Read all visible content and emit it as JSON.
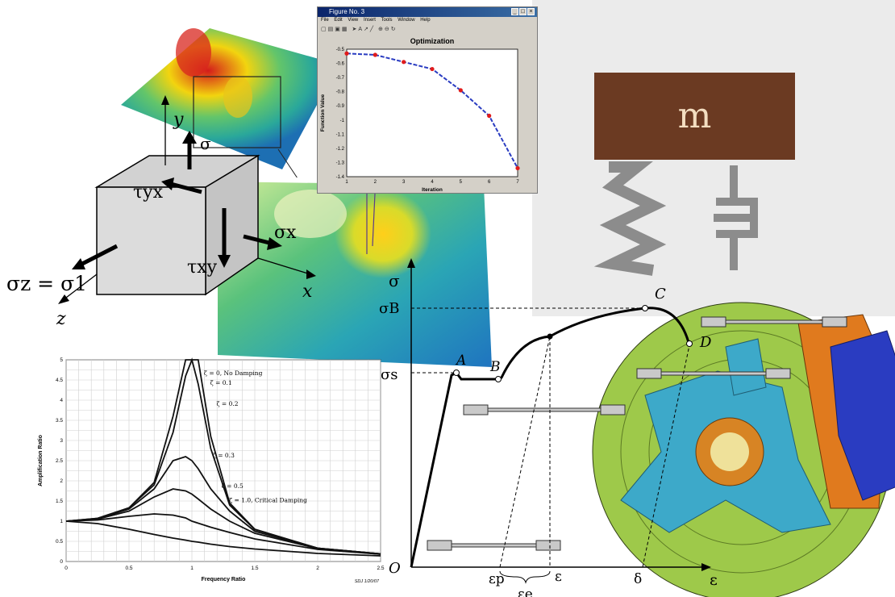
{
  "figure_window": {
    "title": "Figure No. 3",
    "menu": [
      "File",
      "Edit",
      "View",
      "Insert",
      "Tools",
      "Window",
      "Help"
    ],
    "plot_title": "Optimization",
    "xlabel": "Iteration",
    "ylabel": "Function Value",
    "x_ticks": [
      "1",
      "2",
      "3",
      "4",
      "5",
      "6",
      "7"
    ],
    "y_ticks": [
      "-0.5",
      "-0.6",
      "-0.7",
      "-0.8",
      "-0.9",
      "-1",
      "-1.1",
      "-1.2",
      "-1.3",
      "-1.4"
    ]
  },
  "stress_cube": {
    "sigma_z": "σz = σ1",
    "tau_yx": "τyx",
    "tau_xy": "τxy",
    "sigma_x": "σx",
    "sigma_y": "σ",
    "axis_x": "x",
    "axis_y": "y",
    "axis_z": "z"
  },
  "mass_spring": {
    "mass_label": "m"
  },
  "stress_strain": {
    "sigma": "σ",
    "sigma_b": "σB",
    "sigma_s": "σs",
    "origin": "O",
    "point_a": "A",
    "point_b": "B",
    "point_c": "C",
    "point_d": "D",
    "eps_p": "εp",
    "eps": "ε",
    "eps_e": "εe",
    "delta": "δ",
    "eps_axis": "ε"
  },
  "amplification_chart": {
    "ylabel": "Amplification Ratio",
    "xlabel_text": "Frequency Ratio",
    "x_ticks": [
      "0",
      "0.5",
      "1",
      "1.5",
      "2",
      "2.5"
    ],
    "y_ticks": [
      "0",
      "0.5",
      "1",
      "1.5",
      "2",
      "2.5",
      "3",
      "3.5",
      "4",
      "4.5",
      "5"
    ],
    "labels": [
      "ζ = 0,  No Damping",
      "ζ = 0.1",
      "ζ = 0.2",
      "ζ = 0.3",
      "ζ = 0.5",
      "ζ = 1.0, Critical Damping"
    ],
    "credit": "SDJ 1/20/07"
  },
  "chart_data": [
    {
      "type": "line",
      "title": "Optimization",
      "xlabel": "Iteration",
      "ylabel": "Function Value",
      "x": [
        1,
        2,
        3,
        4,
        5,
        6,
        7
      ],
      "series": [
        {
          "values": [
            -0.53,
            -0.54,
            -0.59,
            -0.64,
            -0.79,
            -0.97,
            -1.34
          ]
        }
      ],
      "xlim": [
        1,
        7
      ],
      "ylim": [
        -1.4,
        -0.5
      ]
    },
    {
      "type": "line",
      "title": "",
      "xlabel": "Frequency Ratio",
      "ylabel": "Amplification Ratio",
      "x": [
        0,
        0.25,
        0.5,
        0.7,
        0.85,
        0.95,
        1.0,
        1.05,
        1.15,
        1.3,
        1.5,
        2.0,
        2.5
      ],
      "series": [
        {
          "name": "ζ = 0,  No Damping",
          "values": [
            1.0,
            1.07,
            1.33,
            1.96,
            3.6,
            5.0,
            5.0,
            5.0,
            3.1,
            1.45,
            0.8,
            0.33,
            0.19
          ]
        },
        {
          "name": "ζ = 0.1",
          "values": [
            1.0,
            1.07,
            1.33,
            1.9,
            3.2,
            4.6,
            5.0,
            4.4,
            2.8,
            1.4,
            0.79,
            0.33,
            0.19
          ]
        },
        {
          "name": "ζ = 0.2",
          "values": [
            1.0,
            1.06,
            1.3,
            1.8,
            2.5,
            2.6,
            2.5,
            2.3,
            1.8,
            1.25,
            0.75,
            0.33,
            0.19
          ]
        },
        {
          "name": "ζ = 0.3",
          "values": [
            1.0,
            1.05,
            1.25,
            1.6,
            1.8,
            1.75,
            1.67,
            1.55,
            1.3,
            1.0,
            0.7,
            0.32,
            0.18
          ]
        },
        {
          "name": "ζ = 0.5",
          "values": [
            1.0,
            1.03,
            1.12,
            1.18,
            1.15,
            1.08,
            1.0,
            0.95,
            0.85,
            0.72,
            0.56,
            0.3,
            0.18
          ]
        },
        {
          "name": "ζ = 1.0, Critical Damping",
          "values": [
            1.0,
            0.94,
            0.8,
            0.67,
            0.58,
            0.53,
            0.5,
            0.48,
            0.43,
            0.37,
            0.31,
            0.2,
            0.14
          ]
        }
      ],
      "xlim": [
        0,
        2.5
      ],
      "ylim": [
        0,
        5
      ],
      "grid": true
    }
  ]
}
